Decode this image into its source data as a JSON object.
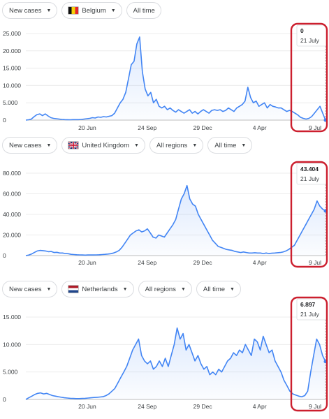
{
  "panels": [
    {
      "controls": {
        "metric": "New cases",
        "country": "Belgium",
        "time": "All time"
      },
      "tooltip": {
        "value": "0",
        "date": "21 July"
      },
      "colors": {
        "line": "#4285f4",
        "highlight": "#cc1f2e"
      }
    },
    {
      "controls": {
        "metric": "New cases",
        "country": "United Kingdom",
        "region": "All regions",
        "time": "All time"
      },
      "tooltip": {
        "value": "43.404",
        "date": "21 July"
      },
      "colors": {
        "line": "#4285f4",
        "highlight": "#cc1f2e"
      }
    },
    {
      "controls": {
        "metric": "New cases",
        "country": "Netherlands",
        "region": "All regions",
        "time": "All time"
      },
      "tooltip": {
        "value": "6.897",
        "date": "21 July"
      },
      "colors": {
        "line": "#4285f4",
        "highlight": "#cc1f2e"
      }
    }
  ],
  "chart_data": [
    {
      "type": "line",
      "series": [
        {
          "values": [
            0,
            100,
            300,
            1000,
            1600,
            1800,
            1300,
            1800,
            1200,
            700,
            500,
            400,
            300,
            200,
            150,
            120,
            100,
            150,
            150,
            150,
            200,
            300,
            400,
            500,
            700,
            600,
            900,
            800,
            1000,
            900,
            1100,
            1300,
            2000,
            3500,
            5000,
            6000,
            8000,
            12000,
            16000,
            17000,
            22000,
            24000,
            14000,
            9000,
            7000,
            8000,
            5000,
            6000,
            4000,
            3500,
            4000,
            3000,
            3500,
            2800,
            2300,
            3000,
            2500,
            2000,
            2500,
            3000,
            2000,
            2500,
            1800,
            2500,
            3000,
            2500,
            2000,
            2800,
            3000,
            2800,
            3000,
            2500,
            2800,
            3500,
            3000,
            2500,
            3500,
            4000,
            4500,
            5500,
            9500,
            6500,
            5000,
            5500,
            4000,
            4500,
            5000,
            3500,
            4500,
            4000,
            3800,
            3500,
            3500,
            3000,
            2500,
            2800,
            2500,
            2000,
            1500,
            800,
            500,
            300,
            500,
            1000,
            2000,
            3000,
            4000,
            2000,
            0
          ]
        }
      ],
      "x_ticks": [
        "20 Jun",
        "24 Sep",
        "29 Dec",
        "4 Apr",
        "9 Jul"
      ],
      "y_ticks": [
        "0",
        "5.000",
        "10.000",
        "15.000",
        "20.000",
        "25.000"
      ],
      "ylim": [
        0,
        25000
      ]
    },
    {
      "type": "line",
      "series": [
        {
          "values": [
            0,
            500,
            1500,
            3000,
            4500,
            5000,
            4800,
            4500,
            3800,
            4000,
            3000,
            3200,
            2500,
            2500,
            2000,
            1800,
            1200,
            1000,
            800,
            700,
            600,
            500,
            600,
            700,
            600,
            700,
            800,
            1000,
            1200,
            1500,
            1800,
            2500,
            3500,
            5000,
            8000,
            12000,
            16000,
            20000,
            22000,
            24000,
            25000,
            23000,
            24000,
            26000,
            22000,
            18000,
            17000,
            20000,
            19000,
            18000,
            22000,
            26000,
            30000,
            35000,
            45000,
            55000,
            60000,
            68000,
            55000,
            50000,
            48000,
            40000,
            35000,
            30000,
            25000,
            20000,
            15000,
            12000,
            9000,
            8000,
            7000,
            6000,
            5500,
            5000,
            4000,
            3500,
            3000,
            3500,
            3000,
            2500,
            2500,
            2800,
            2500,
            2500,
            2000,
            2500,
            2000,
            2300,
            2500,
            2800,
            3000,
            3500,
            4500,
            6000,
            8000,
            10000,
            15000,
            20000,
            25000,
            30000,
            35000,
            40000,
            45000,
            53000,
            48000,
            45000,
            43404
          ]
        }
      ],
      "x_ticks": [
        "20 Jun",
        "24 Sep",
        "29 Dec",
        "4 Apr",
        "9 Jul"
      ],
      "y_ticks": [
        "0",
        "20.000",
        "40.000",
        "60.000",
        "80.000"
      ],
      "ylim": [
        0,
        80000
      ]
    },
    {
      "type": "line",
      "series": [
        {
          "values": [
            0,
            300,
            600,
            900,
            1100,
            1200,
            1000,
            1100,
            900,
            700,
            600,
            500,
            400,
            300,
            250,
            200,
            180,
            150,
            150,
            180,
            200,
            250,
            300,
            350,
            400,
            450,
            500,
            700,
            1000,
            1500,
            2000,
            3000,
            4000,
            5000,
            6000,
            7500,
            9000,
            10000,
            11000,
            8000,
            7000,
            6500,
            7000,
            5500,
            6000,
            7000,
            6000,
            7500,
            6000,
            8000,
            10000,
            13000,
            11000,
            12000,
            9000,
            10000,
            8500,
            7000,
            8000,
            6500,
            5500,
            6000,
            4500,
            5000,
            4500,
            5500,
            5000,
            6000,
            7000,
            7500,
            8500,
            8000,
            9000,
            8500,
            10000,
            9000,
            8000,
            11000,
            10500,
            9000,
            11500,
            10000,
            8500,
            9000,
            7000,
            6000,
            5000,
            3500,
            2500,
            1500,
            1000,
            800,
            600,
            500,
            700,
            1500,
            5000,
            8000,
            11000,
            10000,
            8000,
            6897
          ]
        }
      ],
      "x_ticks": [
        "20 Jun",
        "24 Sep",
        "29 Dec",
        "4 Apr",
        "9 Jul"
      ],
      "y_ticks": [
        "0",
        "5.000",
        "10.000",
        "15.000"
      ],
      "ylim": [
        0,
        15000
      ]
    }
  ]
}
